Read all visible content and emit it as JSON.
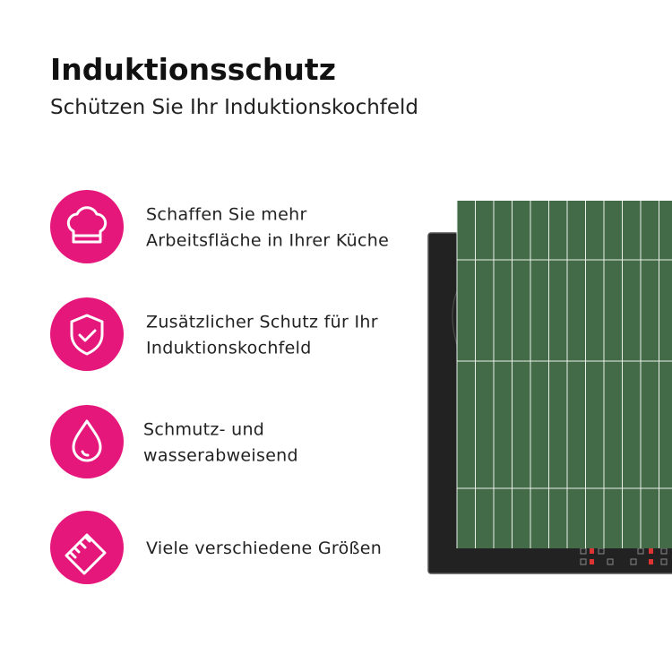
{
  "header": {
    "title": "Induktionsschutz",
    "subtitle": "Schützen Sie Ihr Induktionskochfeld"
  },
  "features": [
    {
      "lines": [
        "Schaffen Sie mehr",
        "Arbeitsfläche in Ihrer Küche"
      ]
    },
    {
      "lines": [
        "Zusätzlicher Schutz für Ihr",
        "Induktionskochfeld"
      ]
    },
    {
      "lines": [
        "Schmutz- und",
        "wasserabweisend"
      ]
    },
    {
      "lines": [
        "Viele verschiedene Größen"
      ]
    }
  ]
}
